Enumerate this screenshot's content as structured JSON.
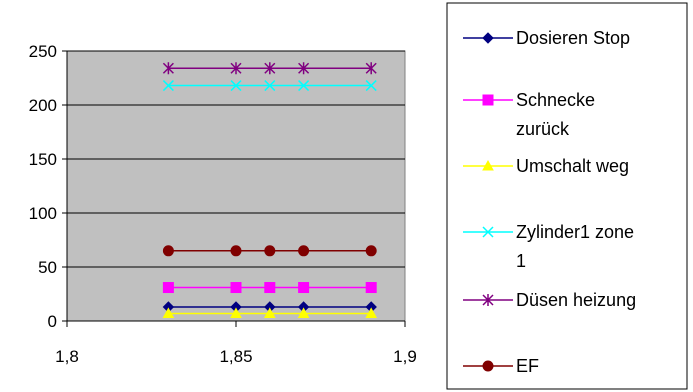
{
  "chart_data": {
    "type": "line",
    "x": [
      1.83,
      1.85,
      1.86,
      1.87,
      1.89
    ],
    "xlim": [
      1.8,
      1.9
    ],
    "xticks": [
      1.8,
      1.85,
      1.9
    ],
    "xtick_labels": [
      "1,8",
      "1,85",
      "1,9"
    ],
    "ylim": [
      0,
      250
    ],
    "yticks": [
      0,
      50,
      100,
      150,
      200,
      250
    ],
    "ytick_labels": [
      "0",
      "50",
      "100",
      "150",
      "200",
      "250"
    ],
    "grid": true,
    "plot_background": "#c0c0c0",
    "legend_placement": "right",
    "series": [
      {
        "name": "Dosieren Stop",
        "legend_lines": [
          "Dosieren Stop"
        ],
        "values": [
          13,
          13,
          13,
          13,
          13
        ],
        "color": "#000080",
        "marker": "diamond"
      },
      {
        "name": "Schnecke zurück",
        "legend_lines": [
          "Schnecke",
          "zurück"
        ],
        "values": [
          31,
          31,
          31,
          31,
          31
        ],
        "color": "#ff00ff",
        "marker": "square"
      },
      {
        "name": "Umschalt weg",
        "legend_lines": [
          "Umschalt weg"
        ],
        "values": [
          7,
          7,
          7,
          7,
          7
        ],
        "color": "#ffff00",
        "marker": "triangle"
      },
      {
        "name": "Zylinder1 zone 1",
        "legend_lines": [
          "Zylinder1 zone",
          "1"
        ],
        "values": [
          218,
          218,
          218,
          218,
          218
        ],
        "color": "#00ffff",
        "marker": "x"
      },
      {
        "name": "Düsen heizung",
        "legend_lines": [
          "Düsen heizung"
        ],
        "values": [
          234,
          234,
          234,
          234,
          234
        ],
        "color": "#800080",
        "marker": "star"
      },
      {
        "name": "EF",
        "legend_lines": [
          "EF"
        ],
        "values": [
          65,
          65,
          65,
          65,
          65
        ],
        "color": "#800000",
        "marker": "circle"
      }
    ]
  }
}
